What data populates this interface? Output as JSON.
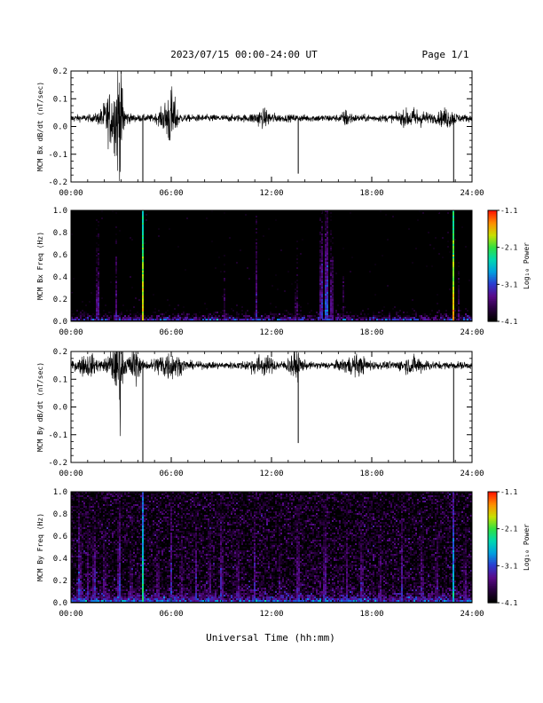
{
  "header": {
    "title": "2023/07/15  00:00-24:00 UT",
    "page_label": "Page 1/1"
  },
  "x_axis": {
    "label": "Universal Time (hh:mm)",
    "ticks": [
      "00:00",
      "06:00",
      "12:00",
      "18:00",
      "24:00"
    ],
    "range_hours": [
      0,
      24
    ]
  },
  "colorbar": {
    "label": "Log₁₀ Power",
    "ticks": [
      "-1.1",
      "-2.1",
      "-3.1",
      "-4.1"
    ],
    "range": [
      -4.1,
      -1.1
    ],
    "colormap": [
      "#000000",
      "#2a0040",
      "#5a0a8a",
      "#2a3cd0",
      "#00a0e0",
      "#00d8b0",
      "#30e040",
      "#c8e000",
      "#ff9000",
      "#ff1800"
    ]
  },
  "chart_data": [
    {
      "type": "line",
      "ylabel": "MCM Bx dB/dt (nT/sec)",
      "ylim": [
        -0.2,
        0.2
      ],
      "yticks": [
        "0.2",
        "0.1",
        "0.0",
        "-0.1",
        "-0.2"
      ],
      "baseline": 0.03,
      "noise_amplitude": 0.012,
      "color": "#000000",
      "events": [
        {
          "t": 2.5,
          "width": 0.6,
          "amp": 0.09
        },
        {
          "t": 2.9,
          "width": 0.2,
          "amp": 0.17
        },
        {
          "t": 5.8,
          "width": 0.5,
          "amp": 0.04
        },
        {
          "t": 6.0,
          "width": 0.3,
          "amp": 0.06
        },
        {
          "t": 11.5,
          "width": 0.6,
          "amp": 0.02
        },
        {
          "t": 16.5,
          "width": 0.3,
          "amp": 0.02
        },
        {
          "t": 20.5,
          "width": 0.8,
          "amp": 0.025
        },
        {
          "t": 22.5,
          "width": 0.5,
          "amp": 0.025
        }
      ],
      "spikes": [
        {
          "t": 4.3,
          "value": -0.2
        },
        {
          "t": 13.6,
          "value": -0.17
        },
        {
          "t": 22.9,
          "value": -0.2
        }
      ]
    },
    {
      "type": "heatmap",
      "ylabel": "MCM Bx Freq (Hz)",
      "ylim": [
        0,
        1
      ],
      "yticks": [
        "1.0",
        "0.8",
        "0.6",
        "0.4",
        "0.2",
        "0.0"
      ],
      "zlim": [
        -4.1,
        -1.1
      ],
      "background_level": -4.6,
      "low_freq_level": -3.0,
      "lines": [
        {
          "t": 4.3,
          "level": -1.6
        },
        {
          "t": 1.6,
          "level": -3.2
        },
        {
          "t": 2.7,
          "level": -3.4
        },
        {
          "t": 9.2,
          "level": -3.6
        },
        {
          "t": 11.1,
          "level": -3.3
        },
        {
          "t": 13.5,
          "level": -3.5
        },
        {
          "t": 15.0,
          "level": -3.0
        },
        {
          "t": 15.3,
          "level": -2.8
        },
        {
          "t": 15.6,
          "level": -3.2
        },
        {
          "t": 16.3,
          "level": -3.7
        },
        {
          "t": 22.9,
          "level": -1.4
        },
        {
          "t": 23.2,
          "level": -3.6
        }
      ]
    },
    {
      "type": "line",
      "ylabel": "MCM By dB/dt (nT/sec)",
      "ylim": [
        -0.2,
        0.2
      ],
      "yticks": [
        "0.2",
        "0.1",
        "0.0",
        "-0.1",
        "-0.2"
      ],
      "baseline": 0.15,
      "noise_amplitude": 0.012,
      "color": "#000000",
      "events": [
        {
          "t": 1.0,
          "width": 0.6,
          "amp": 0.03
        },
        {
          "t": 2.7,
          "width": 0.5,
          "amp": 0.06
        },
        {
          "t": 2.9,
          "width": 0.15,
          "amp": 0.14
        },
        {
          "t": 3.8,
          "width": 0.3,
          "amp": 0.06
        },
        {
          "t": 5.8,
          "width": 0.8,
          "amp": 0.04
        },
        {
          "t": 11.4,
          "width": 0.8,
          "amp": 0.025
        },
        {
          "t": 13.4,
          "width": 0.4,
          "amp": 0.04
        },
        {
          "t": 17.0,
          "width": 0.8,
          "amp": 0.025
        },
        {
          "t": 20.5,
          "width": 0.8,
          "amp": 0.02
        }
      ],
      "spikes": [
        {
          "t": 4.3,
          "value": -0.2
        },
        {
          "t": 13.6,
          "value": -0.13
        },
        {
          "t": 22.9,
          "value": -0.2
        }
      ]
    },
    {
      "type": "heatmap",
      "ylabel": "MCM By Freq (Hz)",
      "ylim": [
        0,
        1
      ],
      "yticks": [
        "1.0",
        "0.8",
        "0.6",
        "0.4",
        "0.2",
        "0.0"
      ],
      "zlim": [
        -4.1,
        -1.1
      ],
      "background_level": -4.0,
      "low_freq_level": -2.9,
      "lines": [
        {
          "t": 0.5,
          "level": -3.0
        },
        {
          "t": 1.0,
          "level": -3.3
        },
        {
          "t": 1.4,
          "level": -3.1
        },
        {
          "t": 2.0,
          "level": -3.3
        },
        {
          "t": 2.9,
          "level": -3.0
        },
        {
          "t": 3.6,
          "level": -3.4
        },
        {
          "t": 4.3,
          "level": -2.2
        },
        {
          "t": 5.2,
          "level": -3.3
        },
        {
          "t": 6.0,
          "level": -3.1
        },
        {
          "t": 6.6,
          "level": -3.4
        },
        {
          "t": 7.5,
          "level": -3.2
        },
        {
          "t": 8.3,
          "level": -3.3
        },
        {
          "t": 9.0,
          "level": -3.1
        },
        {
          "t": 10.0,
          "level": -3.3
        },
        {
          "t": 11.0,
          "level": -3.2
        },
        {
          "t": 12.5,
          "level": -3.4
        },
        {
          "t": 13.6,
          "level": -3.1
        },
        {
          "t": 15.2,
          "level": -3.1
        },
        {
          "t": 16.5,
          "level": -3.3
        },
        {
          "t": 17.4,
          "level": -3.2
        },
        {
          "t": 18.5,
          "level": -3.3
        },
        {
          "t": 19.8,
          "level": -3.2
        },
        {
          "t": 21.0,
          "level": -3.3
        },
        {
          "t": 21.9,
          "level": -3.3
        },
        {
          "t": 22.9,
          "level": -2.5
        },
        {
          "t": 23.6,
          "level": -3.3
        }
      ]
    }
  ]
}
